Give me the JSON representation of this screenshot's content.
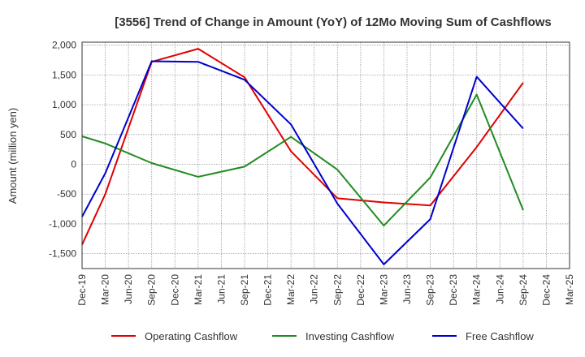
{
  "chart_data": {
    "type": "line",
    "title": "[3556]  Trend of Change in Amount (YoY) of 12Mo Moving Sum of Cashflows",
    "xlabel": "",
    "ylabel": "Amount (million yen)",
    "categories": [
      "Dec-19",
      "Mar-20",
      "Jun-20",
      "Sep-20",
      "Dec-20",
      "Mar-21",
      "Jun-21",
      "Sep-21",
      "Dec-21",
      "Mar-22",
      "Jun-22",
      "Sep-22",
      "Dec-22",
      "Mar-23",
      "Jun-23",
      "Sep-23",
      "Dec-23",
      "Mar-24",
      "Jun-24",
      "Sep-24",
      "Dec-24",
      "Mar-25"
    ],
    "ylim": [
      -1750,
      2050
    ],
    "yticks": [
      2000,
      1500,
      1000,
      500,
      0,
      -500,
      -1000,
      -1500
    ],
    "ytick_labels": [
      "2,000",
      "1,500",
      "1,000",
      "500",
      "0",
      "-500",
      "-1,000",
      "-1,500"
    ],
    "grid": true,
    "legend_position": "bottom",
    "series": [
      {
        "name": "Operating Cashflow",
        "color": "#e00000",
        "values": [
          -1350,
          -500,
          null,
          1720,
          null,
          1940,
          null,
          1460,
          null,
          220,
          null,
          -570,
          null,
          -640,
          null,
          -690,
          null,
          290,
          null,
          1370,
          null,
          null
        ]
      },
      {
        "name": "Investing Cashflow",
        "color": "#228b22",
        "values": [
          470,
          350,
          null,
          20,
          null,
          -210,
          null,
          -40,
          null,
          460,
          null,
          -90,
          null,
          -1030,
          null,
          -220,
          null,
          1170,
          null,
          -770,
          null,
          null
        ]
      },
      {
        "name": "Free Cashflow",
        "color": "#0000cc",
        "values": [
          -880,
          -150,
          null,
          1730,
          null,
          1720,
          null,
          1420,
          null,
          670,
          null,
          -660,
          null,
          -1680,
          null,
          -920,
          null,
          1470,
          null,
          600,
          null,
          null
        ]
      }
    ]
  }
}
